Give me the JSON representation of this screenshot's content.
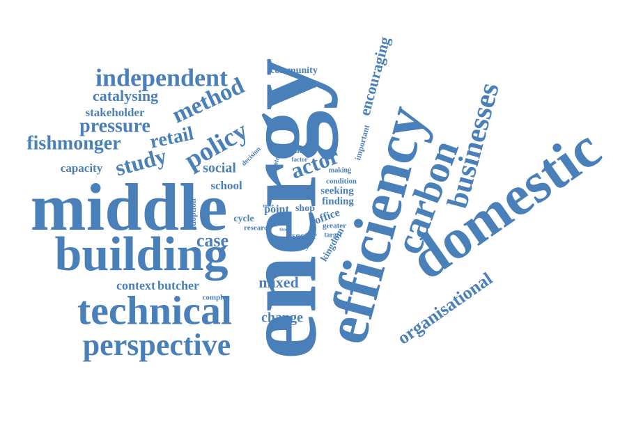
{
  "words": [
    "energy",
    "efficiency",
    "domestic",
    "carbon",
    "businesses",
    "organisational",
    "middle",
    "building",
    "technical",
    "perspective",
    "independent",
    "method",
    "catalysing",
    "stakeholder",
    "pressure",
    "fishmonger",
    "retail",
    "policy",
    "study",
    "capacity",
    "social",
    "school",
    "community",
    "encouraging",
    "actor",
    "important",
    "decision",
    "potential",
    "concern",
    "factor",
    "making",
    "condition",
    "seeking",
    "finding",
    "point",
    "shop",
    "more",
    "office",
    "adoption",
    "cycle",
    "research",
    "zero",
    "date",
    "times",
    "greater",
    "kingdom",
    "sector",
    "issue",
    "target",
    "agency",
    "case",
    "context",
    "butcher",
    "mixed",
    "complex",
    "change"
  ]
}
